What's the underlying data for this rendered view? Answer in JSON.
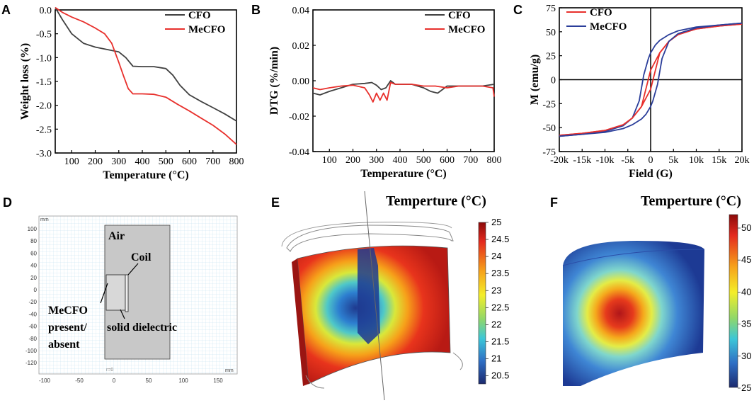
{
  "colors": {
    "cfo": "#404040",
    "mecfo": "#e8302c",
    "cfo_c": "#e8302c",
    "mecfo_c": "#2b3e9a",
    "axis": "#000000"
  },
  "panels": {
    "A": "A",
    "B": "B",
    "C": "C",
    "D": "D",
    "E": "E",
    "F": "F"
  },
  "chart_data": [
    {
      "panel": "A",
      "type": "line",
      "title": "",
      "xlabel": "Temperature (°C)",
      "ylabel": "Weight loss (%)",
      "xlim": [
        30,
        800
      ],
      "ylim": [
        -3.0,
        0.0
      ],
      "xticks": [
        100,
        200,
        300,
        400,
        500,
        600,
        700,
        800
      ],
      "xtick_labels": [
        "100",
        "200",
        "300",
        "400",
        "500",
        "600",
        "700",
        "800"
      ],
      "yticks": [
        0.0,
        -0.5,
        -1.0,
        -1.5,
        -2.0,
        -2.5,
        -3.0
      ],
      "ytick_labels": [
        "0.0",
        "-0.5",
        "-1.0",
        "-1.5",
        "-2.0",
        "-2.5",
        "-3.0"
      ],
      "series": [
        {
          "name": "CFO",
          "color": "#404040",
          "x": [
            30,
            60,
            100,
            150,
            200,
            250,
            300,
            330,
            360,
            400,
            450,
            500,
            530,
            560,
            600,
            650,
            700,
            750,
            800
          ],
          "y": [
            0.05,
            -0.2,
            -0.5,
            -0.7,
            -0.78,
            -0.83,
            -0.88,
            -1.0,
            -1.18,
            -1.19,
            -1.19,
            -1.23,
            -1.37,
            -1.58,
            -1.78,
            -1.92,
            -2.05,
            -2.18,
            -2.33
          ]
        },
        {
          "name": "MeCFO",
          "color": "#e8302c",
          "x": [
            30,
            60,
            100,
            150,
            200,
            240,
            270,
            300,
            320,
            340,
            360,
            400,
            450,
            500,
            550,
            600,
            650,
            700,
            750,
            800
          ],
          "y": [
            0.05,
            -0.05,
            -0.15,
            -0.25,
            -0.38,
            -0.5,
            -0.7,
            -1.1,
            -1.38,
            -1.65,
            -1.76,
            -1.76,
            -1.77,
            -1.83,
            -1.98,
            -2.12,
            -2.27,
            -2.42,
            -2.6,
            -2.82
          ]
        }
      ]
    },
    {
      "panel": "B",
      "type": "line",
      "title": "",
      "xlabel": "Temperature (°C)",
      "ylabel": "DTG (%/min)",
      "xlim": [
        30,
        800
      ],
      "ylim": [
        -0.04,
        0.04
      ],
      "xticks": [
        100,
        200,
        300,
        400,
        500,
        600,
        700,
        800
      ],
      "xtick_labels": [
        "100",
        "200",
        "300",
        "400",
        "500",
        "600",
        "700",
        "800"
      ],
      "yticks": [
        0.04,
        0.02,
        0.0,
        -0.02,
        -0.04
      ],
      "ytick_labels": [
        "0.04",
        "0.02",
        "0.00",
        "-0.02",
        "-0.04"
      ],
      "series": [
        {
          "name": "CFO",
          "color": "#404040",
          "x": [
            30,
            60,
            100,
            150,
            200,
            250,
            280,
            300,
            320,
            340,
            360,
            380,
            400,
            450,
            500,
            530,
            560,
            580,
            600,
            650,
            700,
            750,
            800
          ],
          "y": [
            -0.007,
            -0.008,
            -0.006,
            -0.004,
            -0.002,
            -0.0015,
            -0.001,
            -0.0025,
            -0.005,
            -0.004,
            0.0,
            -0.002,
            -0.002,
            -0.002,
            -0.004,
            -0.006,
            -0.007,
            -0.005,
            -0.003,
            -0.003,
            -0.003,
            -0.003,
            -0.002
          ]
        },
        {
          "name": "MeCFO",
          "color": "#e8302c",
          "x": [
            30,
            60,
            100,
            150,
            200,
            250,
            270,
            285,
            300,
            315,
            330,
            345,
            360,
            380,
            400,
            450,
            500,
            550,
            600,
            650,
            700,
            750,
            795,
            800
          ],
          "y": [
            -0.004,
            -0.005,
            -0.004,
            -0.003,
            -0.0025,
            -0.004,
            -0.008,
            -0.012,
            -0.007,
            -0.011,
            -0.007,
            -0.011,
            -0.001,
            -0.002,
            -0.002,
            -0.002,
            -0.003,
            -0.003,
            -0.004,
            -0.003,
            -0.003,
            -0.003,
            -0.004,
            -0.009
          ]
        }
      ]
    },
    {
      "panel": "C",
      "type": "line",
      "title": "",
      "xlabel": "Field (G)",
      "ylabel": "M (emu/g)",
      "xlim": [
        -20000,
        20000
      ],
      "ylim": [
        -75,
        75
      ],
      "xticks": [
        -20000,
        -15000,
        -10000,
        -5000,
        0,
        5000,
        10000,
        15000,
        20000
      ],
      "xtick_labels": [
        "-20k",
        "-15k",
        "-10k",
        "-5k",
        "0",
        "5k",
        "10k",
        "15k",
        "20k"
      ],
      "yticks": [
        75,
        50,
        25,
        0,
        -25,
        -50,
        -75
      ],
      "ytick_labels": [
        "75",
        "50",
        "25",
        "0",
        "-25",
        "-50",
        "-75"
      ],
      "series": [
        {
          "name": "CFO",
          "color": "#e8302c",
          "x": [
            -20000,
            -15000,
            -10000,
            -6000,
            -4000,
            -2000,
            0,
            2000,
            4000,
            6000,
            10000,
            15000,
            20000
          ],
          "y": [
            -58,
            -56,
            -53,
            -47,
            -40,
            -28,
            -10,
            28,
            40,
            47,
            53,
            56,
            58
          ]
        },
        {
          "name": "MeCFO",
          "color": "#2b3e9a",
          "x": [
            -20000,
            -15000,
            -10000,
            -6000,
            -4000,
            -2500,
            -1500,
            -500,
            0,
            1000,
            2000,
            4000,
            6000,
            10000,
            15000,
            20000
          ],
          "y": [
            -59,
            -57,
            -54,
            -48,
            -40,
            -22,
            5,
            22,
            28,
            36,
            41,
            47,
            51,
            55,
            57,
            59
          ]
        }
      ],
      "series_return": [
        {
          "name": "CFO",
          "x": [
            20000,
            15000,
            10000,
            6000,
            4000,
            2000,
            0,
            -2000,
            -4000,
            -6000,
            -10000,
            -15000,
            -20000
          ],
          "y": [
            58,
            56,
            53,
            47,
            40,
            28,
            10,
            -28,
            -40,
            -47,
            -53,
            -56,
            -58
          ]
        },
        {
          "name": "MeCFO",
          "x": [
            20000,
            15000,
            10000,
            6000,
            4000,
            2500,
            1500,
            500,
            0,
            -1000,
            -2000,
            -4000,
            -6000,
            -10000,
            -15000,
            -20000
          ],
          "y": [
            59,
            57,
            54,
            48,
            40,
            22,
            -5,
            -22,
            -28,
            -36,
            -41,
            -47,
            -51,
            -55,
            -57,
            -59
          ]
        }
      ]
    }
  ],
  "panelD": {
    "unit_x": "mm",
    "unit_y": "mm",
    "yticks": [
      "100",
      "80",
      "60",
      "40",
      "20",
      "0",
      "-20",
      "-40",
      "-60",
      "-80",
      "-100",
      "-120"
    ],
    "xticks": [
      "-100",
      "-50",
      "0",
      "50",
      "100",
      "150"
    ],
    "axis_marker": "r=0",
    "labels": {
      "air": "Air",
      "coil": "Coil",
      "mecfo": "MeCFO",
      "present": "present/",
      "absent": "absent",
      "dielectric": "solid dielectric"
    }
  },
  "panelE": {
    "title": "Temperture (°C)",
    "colorbar_ticks": [
      "25",
      "24.5",
      "24",
      "23.5",
      "23",
      "22.5",
      "22",
      "21.5",
      "21",
      "20.5"
    ]
  },
  "panelF": {
    "title": "Temperture (°C)",
    "colorbar_ticks": [
      "50",
      "45",
      "40",
      "35",
      "30",
      "25"
    ]
  }
}
